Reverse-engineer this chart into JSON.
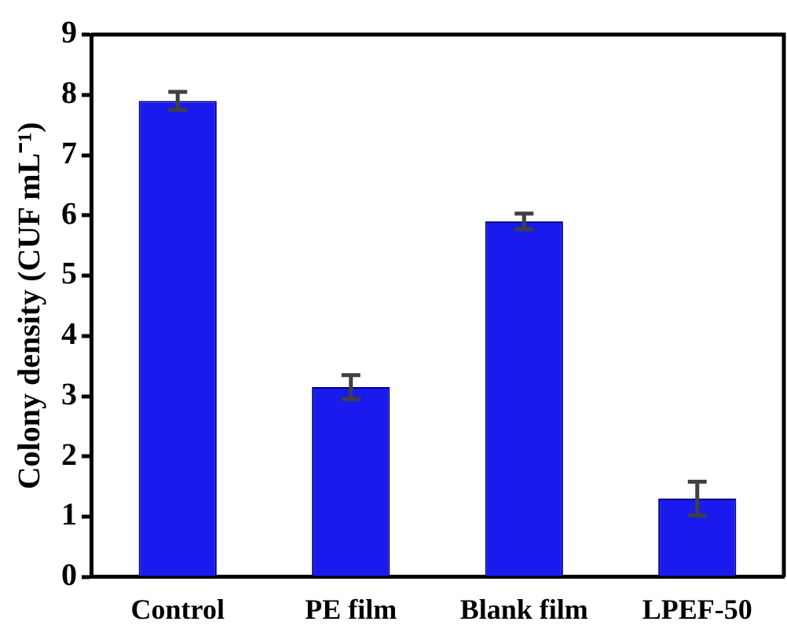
{
  "chart_data": {
    "type": "bar",
    "ylabel": "Colony density (CUF mL⁻¹)",
    "categories": [
      "Control",
      "PE film",
      "Blank film",
      "LPEF-50"
    ],
    "values": [
      7.9,
      3.15,
      5.9,
      1.3
    ],
    "errors": [
      0.15,
      0.2,
      0.13,
      0.28
    ],
    "color": "#1a1aee",
    "ylim": [
      0,
      9
    ],
    "yticks": [
      0,
      1,
      2,
      3,
      4,
      5,
      6,
      7,
      8,
      9
    ],
    "grid": false,
    "legend": false
  }
}
